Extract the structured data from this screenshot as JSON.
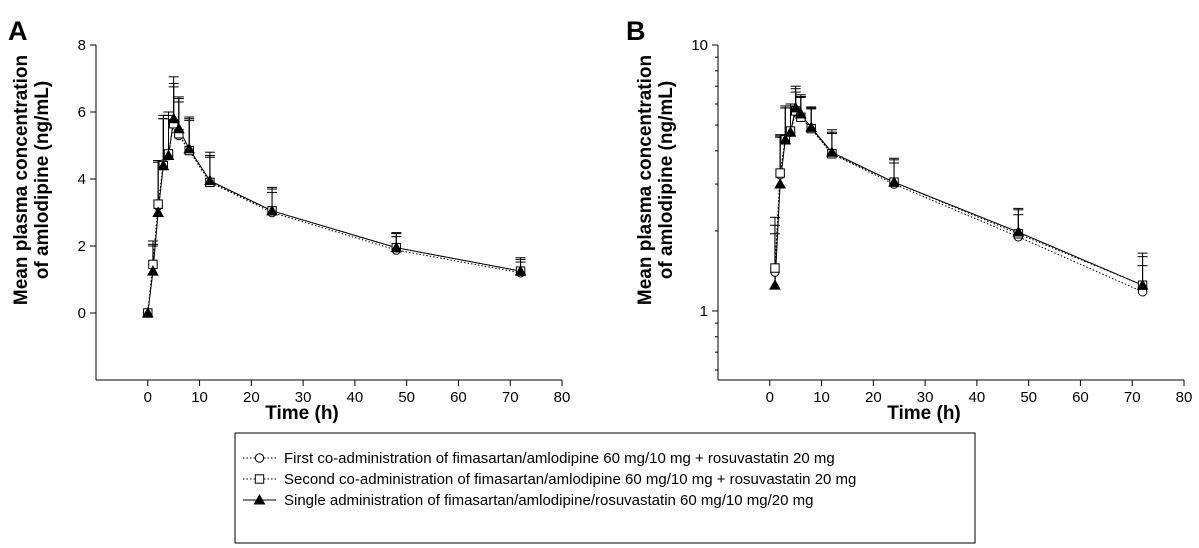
{
  "chart_data": [
    {
      "type": "line",
      "panel_label": "A",
      "xlabel": "Time (h)",
      "ylabel": [
        "Mean plasma concentration",
        "of amlodipine (ng/mL)"
      ],
      "xlim": [
        -10,
        80
      ],
      "ylim": [
        -2,
        8
      ],
      "yscale": "linear",
      "xticks": [
        0,
        10,
        20,
        30,
        40,
        50,
        60,
        70,
        80
      ],
      "yticks": [
        0,
        2,
        4,
        6,
        8
      ],
      "grid": false,
      "error_bars": "upper",
      "series": [
        {
          "name": "First co-administration of fimasartan/amlodipine 60 mg/10 mg + rosuvastatin 20 mg",
          "marker": "circle-open",
          "line": "dotted",
          "color": "#000000",
          "x": [
            0,
            1,
            2,
            3,
            4,
            5,
            6,
            8,
            12,
            24,
            48,
            72
          ],
          "y": [
            0,
            1.45,
            3.2,
            4.45,
            4.7,
            5.7,
            5.3,
            4.85,
            3.9,
            3.0,
            1.88,
            1.2
          ],
          "err": [
            0,
            0.7,
            1.35,
            1.35,
            1.2,
            1.05,
            1.0,
            0.9,
            0.75,
            0.6,
            0.4,
            0.32
          ]
        },
        {
          "name": "Second co-administration of fimasartan/amlodipine 60 mg/10 mg + rosuvastatin 20 mg",
          "marker": "square-open",
          "line": "dotted",
          "color": "#000000",
          "x": [
            0,
            1,
            2,
            3,
            4,
            5,
            6,
            8,
            12,
            24,
            48,
            72
          ],
          "y": [
            0,
            1.45,
            3.25,
            4.4,
            4.75,
            5.65,
            5.35,
            4.85,
            3.9,
            3.05,
            1.95,
            1.25
          ],
          "err": [
            0,
            0.6,
            1.3,
            1.4,
            1.25,
            1.2,
            1.05,
            0.95,
            0.8,
            0.65,
            0.42,
            0.35
          ]
        },
        {
          "name": "Single administration of fimasartan/amlodipine/rosuvastatin 60 mg/10 mg/20 mg",
          "marker": "triangle-filled",
          "line": "solid",
          "color": "#000000",
          "x": [
            0,
            1,
            2,
            3,
            4,
            5,
            6,
            8,
            12,
            24,
            48,
            72
          ],
          "y": [
            0,
            1.25,
            3.0,
            4.4,
            4.7,
            5.8,
            5.5,
            4.9,
            3.95,
            3.05,
            1.95,
            1.25
          ],
          "err": [
            0,
            0.75,
            1.5,
            1.5,
            1.3,
            1.25,
            0.95,
            0.95,
            0.85,
            0.7,
            0.45,
            0.4
          ]
        }
      ]
    },
    {
      "type": "line",
      "panel_label": "B",
      "xlabel": "Time (h)",
      "ylabel": [
        "Mean plasma concentration",
        "of amlodipine (ng/mL)"
      ],
      "xlim": [
        -10,
        80
      ],
      "ylim": [
        0.55,
        10
      ],
      "yscale": "log",
      "xticks": [
        0,
        10,
        20,
        30,
        40,
        50,
        60,
        70,
        80
      ],
      "yticks": [
        1,
        10
      ],
      "grid": false,
      "error_bars": "upper",
      "series": [
        {
          "name": "First co-administration of fimasartan/amlodipine 60 mg/10 mg + rosuvastatin 20 mg",
          "marker": "circle-open",
          "line": "dotted",
          "color": "#000000",
          "x": [
            1,
            2,
            3,
            4,
            5,
            6,
            8,
            12,
            24,
            48,
            72
          ],
          "y": [
            1.4,
            3.25,
            4.45,
            4.7,
            5.6,
            5.35,
            4.85,
            3.9,
            3.0,
            1.9,
            1.18
          ],
          "err": [
            0.7,
            1.3,
            1.35,
            1.2,
            1.05,
            1.0,
            0.9,
            0.75,
            0.6,
            0.4,
            0.3
          ]
        },
        {
          "name": "Second co-administration of fimasartan/amlodipine 60 mg/10 mg + rosuvastatin 20 mg",
          "marker": "square-open",
          "line": "dotted",
          "color": "#000000",
          "x": [
            1,
            2,
            3,
            4,
            5,
            6,
            8,
            12,
            24,
            48,
            72
          ],
          "y": [
            1.45,
            3.3,
            4.4,
            4.75,
            5.65,
            5.35,
            4.85,
            3.9,
            3.05,
            1.95,
            1.25
          ],
          "err": [
            0.8,
            1.3,
            1.4,
            1.25,
            1.2,
            1.05,
            0.95,
            0.8,
            0.65,
            0.45,
            0.35
          ]
        },
        {
          "name": "Single administration of fimasartan/amlodipine/rosuvastatin 60 mg/10 mg/20 mg",
          "marker": "triangle-filled",
          "line": "solid",
          "color": "#000000",
          "x": [
            1,
            2,
            3,
            4,
            5,
            6,
            8,
            12,
            24,
            48,
            72
          ],
          "y": [
            1.25,
            3.0,
            4.4,
            4.7,
            5.8,
            5.5,
            4.9,
            3.95,
            3.05,
            1.98,
            1.25
          ],
          "err": [
            0.7,
            1.5,
            1.5,
            1.3,
            1.2,
            1.0,
            0.95,
            0.85,
            0.7,
            0.45,
            0.4
          ]
        }
      ]
    }
  ],
  "legend": {
    "placement": "bottom-center",
    "entries": [
      "First co-administration of fimasartan/amlodipine 60 mg/10 mg + rosuvastatin 20 mg",
      "Second co-administration of fimasartan/amlodipine 60 mg/10 mg + rosuvastatin 20 mg",
      "Single administration of fimasartan/amlodipine/rosuvastatin 60 mg/10 mg/20 mg"
    ]
  }
}
